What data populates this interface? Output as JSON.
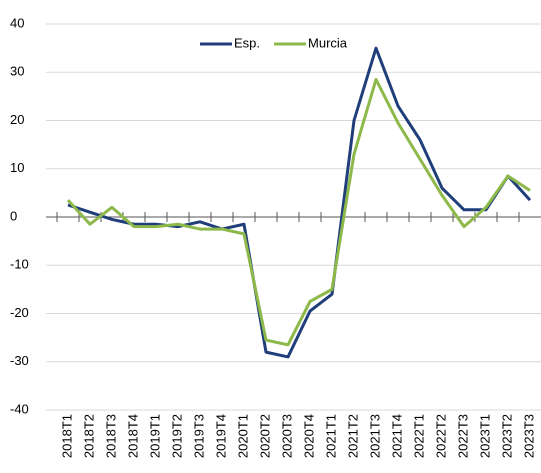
{
  "chart_data": {
    "type": "line",
    "categories": [
      "2018T1",
      "2018T2",
      "2018T3",
      "2018T4",
      "2019T1",
      "2019T2",
      "2019T3",
      "2019T4",
      "2020T1",
      "2020T2",
      "2020T3",
      "2020T4",
      "2021T1",
      "2021T2",
      "2021T3",
      "2021T4",
      "2022T1",
      "2022T2",
      "2022T3",
      "2023T1",
      "2023T2",
      "2023T3"
    ],
    "series": [
      {
        "name": "Esp.",
        "color": "#1f3e7a",
        "values": [
          2.5,
          1,
          -0.5,
          -1.5,
          -1.5,
          -2,
          -1,
          -2.5,
          -1.5,
          -28,
          -29,
          -19.5,
          -16,
          20,
          35,
          23,
          16,
          6,
          1.5,
          1.5,
          8.5,
          3.5
        ]
      },
      {
        "name": "Murcia",
        "color": "#8db84a",
        "values": [
          3.5,
          -1.5,
          2,
          -2,
          -2,
          -1.5,
          -2.5,
          -2.5,
          -3.5,
          -25.5,
          -26.5,
          -17.5,
          -15,
          13,
          28.5,
          19.5,
          12,
          4.5,
          -2,
          2,
          8.5,
          5.5
        ]
      }
    ],
    "ylim": [
      -40,
      40
    ],
    "yticks": [
      -40,
      -30,
      -20,
      -10,
      0,
      10,
      20,
      30,
      40
    ],
    "grid": true,
    "legend": "top"
  }
}
